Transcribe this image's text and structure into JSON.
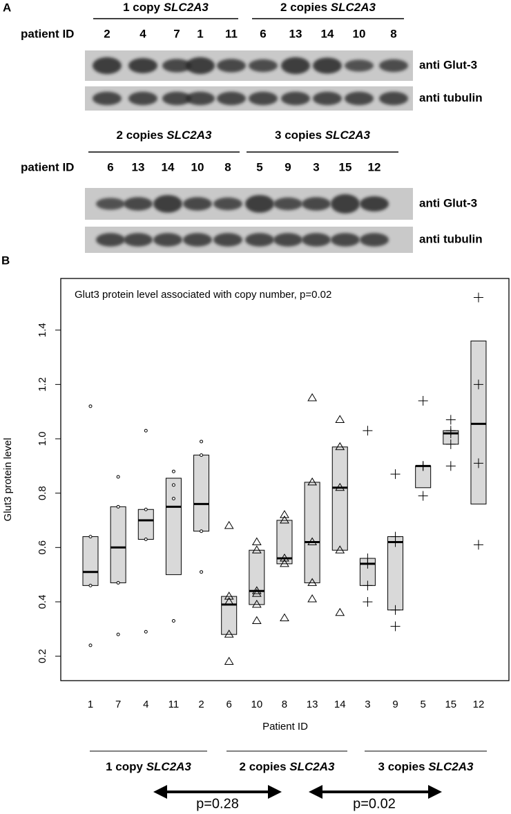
{
  "panel_a": {
    "label": "A",
    "blots": [
      {
        "id_label": "patient ID",
        "rows": [
          "anti Glut-3",
          "anti tubulin"
        ],
        "groups": [
          {
            "label": "1 copy",
            "gene": "SLC2A3",
            "ids": [
              "2",
              "4",
              "7",
              "1",
              "11"
            ]
          },
          {
            "label": "2 copies",
            "gene": "SLC2A3",
            "ids": [
              "6",
              "13",
              "14",
              "10",
              "8"
            ]
          }
        ]
      },
      {
        "id_label": "patient ID",
        "rows": [
          "anti Glut-3",
          "anti tubulin"
        ],
        "groups": [
          {
            "label": "2 copies",
            "gene": "SLC2A3",
            "ids": [
              "6",
              "13",
              "14",
              "10",
              "8"
            ]
          },
          {
            "label": "3 copies",
            "gene": "SLC2A3",
            "ids": [
              "5",
              "9",
              "3",
              "15",
              "12"
            ]
          }
        ]
      }
    ]
  },
  "panel_b_label": "B",
  "chart_data": {
    "type": "box",
    "title": "Glut3 protein level associated with copy number, p=0.02",
    "ylabel": "Glut3 protein level",
    "xlabel": "Patient ID",
    "ylim": [
      0.11,
      1.59
    ],
    "yticks": [
      0.2,
      0.4,
      0.6,
      0.8,
      {
        "value": 1,
        "label": "1.0"
      },
      1.2,
      1.4
    ],
    "box_color": "#d9d9d9",
    "groups": [
      {
        "label": "1 copy",
        "gene": "SLC2A3",
        "marker": "circle",
        "categories": [
          "1",
          "7",
          "4",
          "11",
          "2"
        ],
        "boxes": [
          {
            "q1": 0.46,
            "median": 0.51,
            "q3": 0.64,
            "points": [
              1.12,
              0.64,
              0.46,
              0.24
            ]
          },
          {
            "q1": 0.47,
            "median": 0.6,
            "q3": 0.75,
            "points": [
              0.86,
              0.75,
              0.47,
              0.28
            ]
          },
          {
            "q1": 0.63,
            "median": 0.7,
            "q3": 0.74,
            "points": [
              1.03,
              0.74,
              0.63,
              0.29
            ]
          },
          {
            "q1": 0.5,
            "median": 0.75,
            "q3": 0.855,
            "points": [
              0.88,
              0.83,
              0.78,
              0.33
            ]
          },
          {
            "q1": 0.66,
            "median": 0.76,
            "q3": 0.94,
            "points": [
              0.99,
              0.94,
              0.66,
              0.51
            ]
          }
        ]
      },
      {
        "label": "2 copies",
        "gene": "SLC2A3",
        "marker": "triangle",
        "categories": [
          "6",
          "10",
          "8",
          "13",
          "14"
        ],
        "boxes": [
          {
            "q1": 0.28,
            "median": 0.39,
            "q3": 0.42,
            "points": [
              0.68,
              0.42,
              0.4,
              0.28,
              0.18
            ]
          },
          {
            "q1": 0.39,
            "median": 0.44,
            "q3": 0.59,
            "points": [
              0.62,
              0.59,
              0.44,
              0.43,
              0.39,
              0.33
            ]
          },
          {
            "q1": 0.54,
            "median": 0.56,
            "q3": 0.7,
            "points": [
              0.72,
              0.7,
              0.56,
              0.54,
              0.34
            ]
          },
          {
            "q1": 0.47,
            "median": 0.62,
            "q3": 0.84,
            "points": [
              1.15,
              0.84,
              0.62,
              0.47,
              0.41
            ]
          },
          {
            "q1": 0.59,
            "median": 0.82,
            "q3": 0.97,
            "points": [
              1.07,
              0.97,
              0.82,
              0.59,
              0.36
            ]
          }
        ]
      },
      {
        "label": "3 copies",
        "gene": "SLC2A3",
        "marker": "plus",
        "categories": [
          "3",
          "9",
          "5",
          "15",
          "12"
        ],
        "boxes": [
          {
            "q1": 0.46,
            "median": 0.54,
            "q3": 0.56,
            "points": [
              1.03,
              0.56,
              0.54,
              0.46,
              0.4
            ]
          },
          {
            "q1": 0.37,
            "median": 0.62,
            "q3": 0.64,
            "points": [
              0.87,
              0.64,
              0.62,
              0.37,
              0.31
            ]
          },
          {
            "q1": 0.82,
            "median": 0.9,
            "q3": 0.9,
            "points": [
              1.14,
              0.9,
              0.9,
              0.79
            ]
          },
          {
            "q1": 0.98,
            "median": 1.02,
            "q3": 1.03,
            "points": [
              1.07,
              1.03,
              1.02,
              0.98,
              0.9
            ]
          },
          {
            "q1": 0.76,
            "median": 1.055,
            "q3": 1.36,
            "points": [
              1.52,
              1.2,
              0.91,
              0.61
            ]
          }
        ]
      }
    ],
    "comparisons": [
      "p=0.28",
      "p=0.02"
    ]
  }
}
